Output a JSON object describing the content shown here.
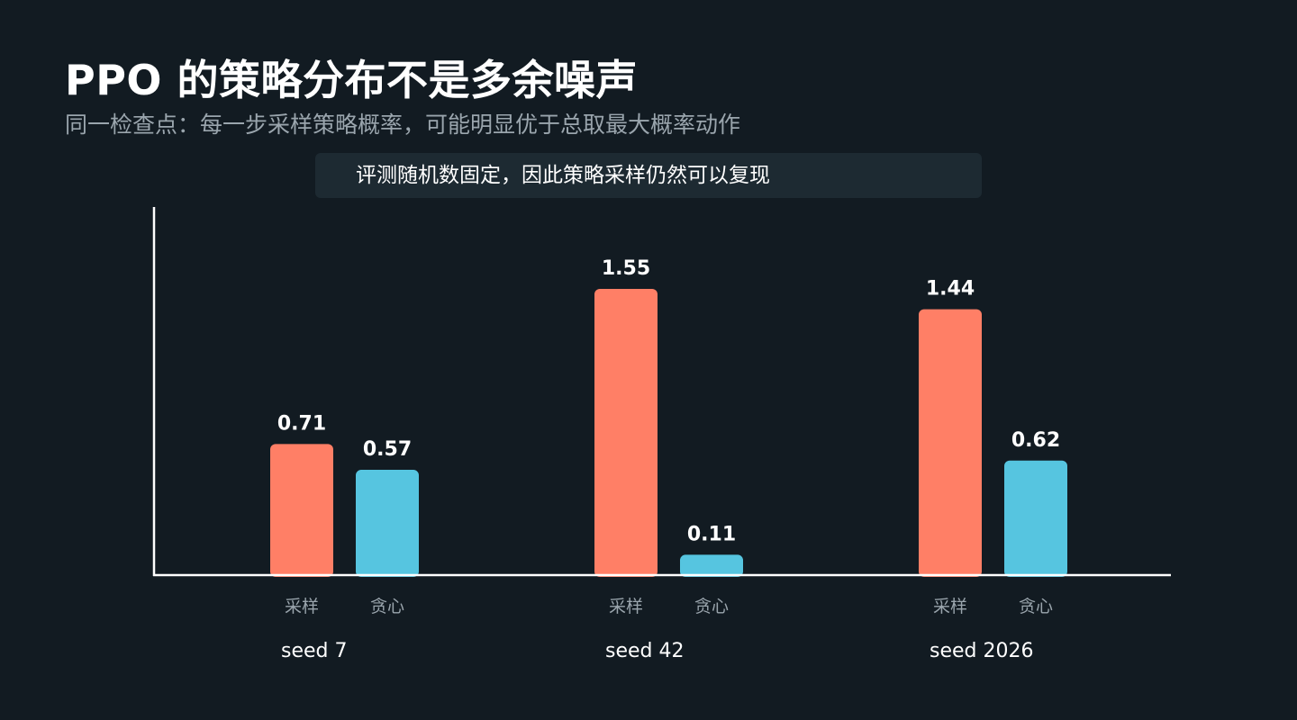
{
  "title": "PPO 的策略分布不是多余噪声",
  "subtitle": "同一检查点：每一步采样策略概率，可能明显优于总取最大概率动作",
  "note": "评测随机数固定，因此策略采样仍然可以复现",
  "colors": {
    "background": "#121b22",
    "sampling": "#ff7f66",
    "greedy": "#56c5e0",
    "axis": "#ffffff",
    "muted": "#9aa5ad",
    "note_bg": "#1d2a32"
  },
  "chart_data": {
    "type": "bar",
    "categories": [
      "seed 7",
      "seed 42",
      "seed 2026"
    ],
    "series": [
      {
        "name": "采样",
        "values": [
          0.71,
          1.55,
          1.44
        ]
      },
      {
        "name": "贪心",
        "values": [
          0.57,
          0.11,
          0.62
        ]
      }
    ],
    "value_labels": [
      [
        "0.71",
        "1.55",
        "1.44"
      ],
      [
        "0.57",
        "0.11",
        "0.62"
      ]
    ],
    "ylim": [
      0,
      1.55
    ],
    "grid": false,
    "legend": "none"
  }
}
